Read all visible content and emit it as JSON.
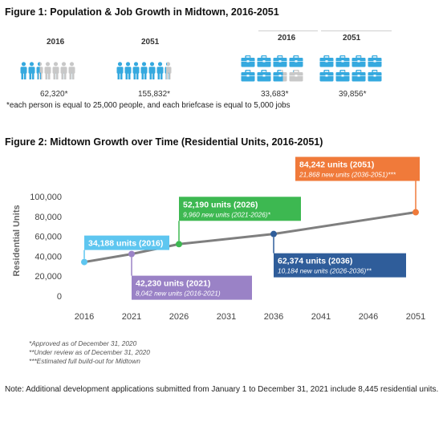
{
  "figure1": {
    "title": "Figure 1: Population & Job Growth in Midtown, 2016-2051",
    "population": [
      {
        "year": "2016",
        "value_label": "62,320*",
        "filled": 2.5,
        "total": 7
      },
      {
        "year": "2051",
        "value_label": "155,832*",
        "filled": 6.2,
        "total": 7
      }
    ],
    "jobs": [
      {
        "year": "2016",
        "value_label": "33,683*",
        "filled": 6.7,
        "total": 8
      },
      {
        "year": "2051",
        "value_label": "39,856*",
        "filled": 8,
        "total": 8
      }
    ],
    "footnote": "*each person is equal to 25,000 people, and each briefcase is equal to 5,000 jobs",
    "colors": {
      "filled": "#35a9df",
      "empty": "#c8c8c8"
    },
    "icons": {
      "person": "person-icon",
      "briefcase": "briefcase-icon"
    }
  },
  "figure2": {
    "title": "Figure 2: Midtown Growth over Time (Residential Units, 2016-2051)"
  },
  "chart_data": {
    "type": "line",
    "ylabel": "Residential Units",
    "xlabel": "",
    "x_ticks": [
      "2016",
      "2021",
      "2026",
      "2031",
      "2036",
      "2041",
      "2046",
      "2051"
    ],
    "y_ticks": [
      "0",
      "20,000",
      "40,000",
      "60,000",
      "80,000",
      "100,000"
    ],
    "xlim": [
      2016,
      2051
    ],
    "ylim": [
      0,
      100000
    ],
    "line_color": "#7f7f7f",
    "series": [
      {
        "values": [
          [
            2016,
            34188
          ],
          [
            2021,
            42230
          ],
          [
            2026,
            52190
          ],
          [
            2036,
            62374
          ],
          [
            2051,
            84242
          ]
        ]
      }
    ],
    "points": [
      {
        "x": 2016,
        "y": 34188,
        "color": "#5ec6f0"
      },
      {
        "x": 2021,
        "y": 42230,
        "color": "#9a82c6"
      },
      {
        "x": 2026,
        "y": 52190,
        "color": "#3db851"
      },
      {
        "x": 2036,
        "y": 62374,
        "color": "#2f5d9a"
      },
      {
        "x": 2051,
        "y": 84242,
        "color": "#f07a3a"
      }
    ],
    "callouts": [
      {
        "x": 2016,
        "y": 34188,
        "title": "34,188 units (2016)",
        "subtitle": "",
        "color": "#5ec6f0"
      },
      {
        "x": 2021,
        "y": 42230,
        "title": "42,230 units (2021)",
        "subtitle": "8,042 new units (2016-2021)",
        "color": "#9a82c6"
      },
      {
        "x": 2026,
        "y": 52190,
        "title": "52,190 units (2026)",
        "subtitle": "9,960 new units (2021-2026)*",
        "color": "#3db851"
      },
      {
        "x": 2036,
        "y": 62374,
        "title": "62,374 units (2036)",
        "subtitle": "10,184 new units (2026-2036)**",
        "color": "#2f5d9a"
      },
      {
        "x": 2051,
        "y": 84242,
        "title": "84,242 units (2051)",
        "subtitle": "21,868 new units (2036-2051)***",
        "color": "#f07a3a"
      }
    ],
    "notes": [
      "*Approved as of December 31, 2020",
      "**Under review as of December 31, 2020",
      "***Estimated full build-out for Midtown"
    ]
  },
  "bottom_note": "Note: Additional development applications submitted from January 1 to December 31, 2021 include 8,445 residential units."
}
